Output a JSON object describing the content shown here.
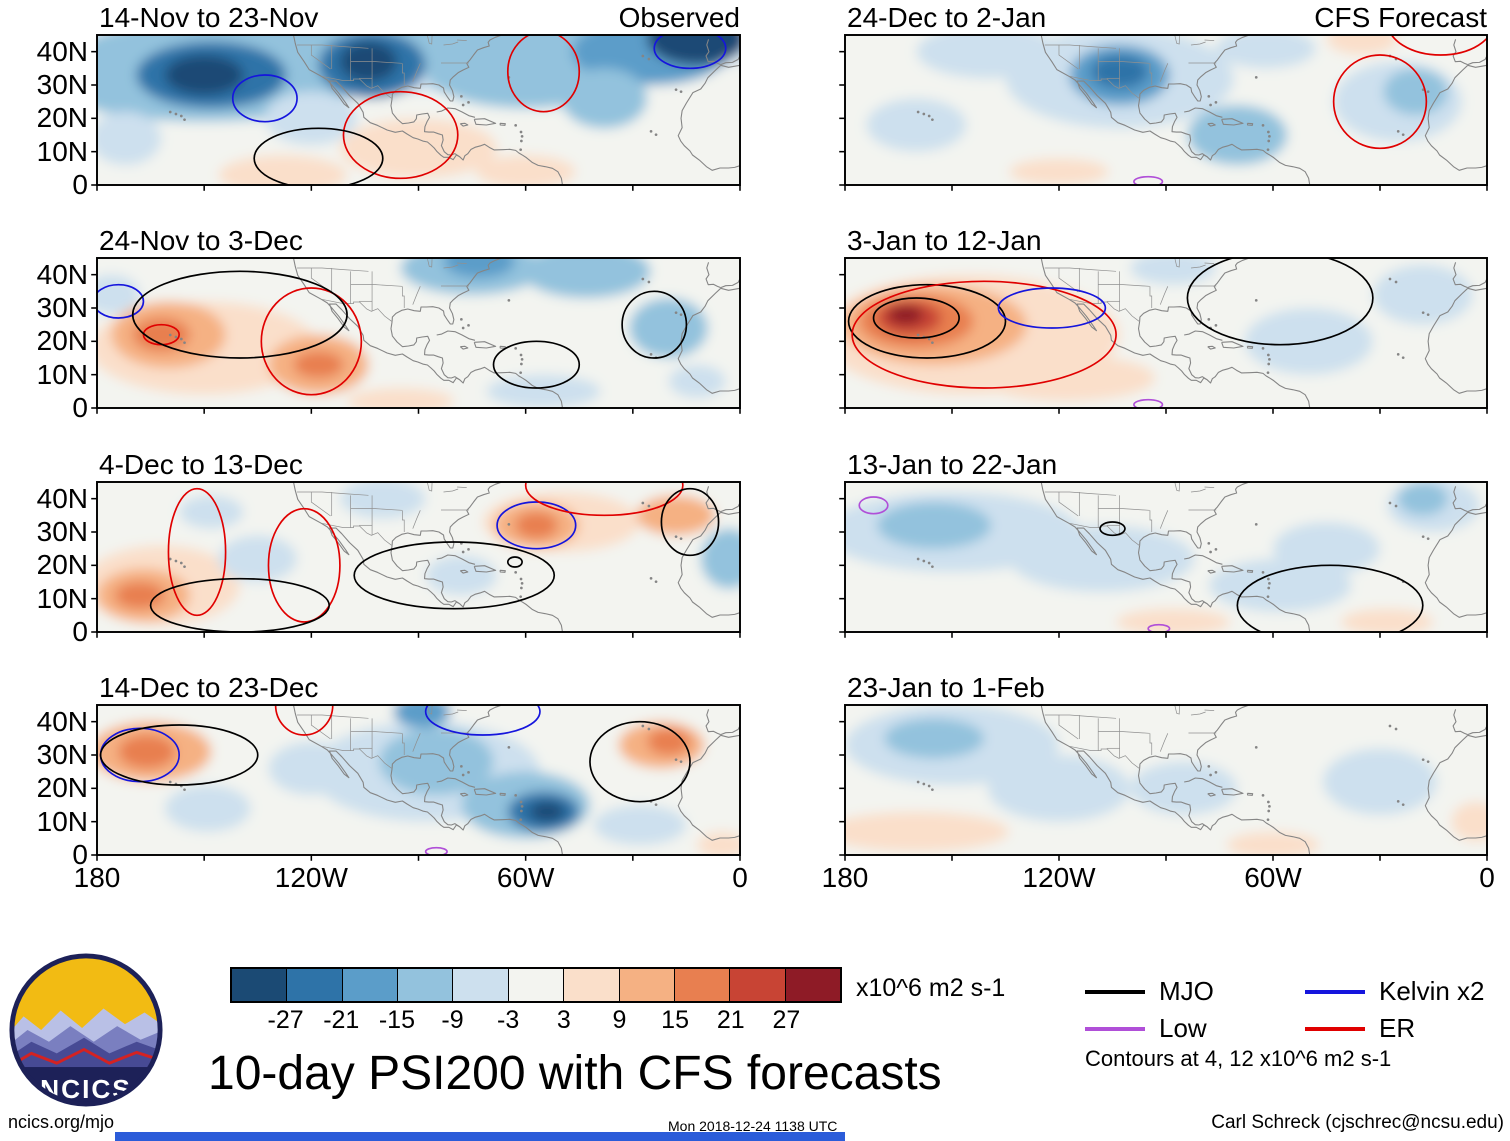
{
  "title": {
    "text": "10-day PSI200 with CFS forecasts"
  },
  "logo": {
    "text": "NCICS"
  },
  "footer": {
    "left": "ncics.org/mjo",
    "center": "Mon 2018-12-24 1138 UTC",
    "right": "Carl Schreck (cjschrec@ncsu.edu)"
  },
  "chart_data": {
    "type": "heatmap",
    "description": "Grid of 8 filled-contour longitude-latitude maps of PSI200 anomalies: left column observed 10-day periods, right column CFS forecast periods",
    "columns": [
      "Observed",
      "CFS Forecast"
    ],
    "lon_range": [
      -180,
      0
    ],
    "lat_range": [
      0,
      45
    ],
    "x_tick_labels": [
      "180",
      "120W",
      "60W",
      "0"
    ],
    "x_tick_lons": [
      -180,
      -120,
      -60,
      0
    ],
    "x_tick_minor": [
      -180,
      -150,
      -120,
      -90,
      -60,
      -30,
      0
    ],
    "y_tick_labels": [
      "40N",
      "30N",
      "20N",
      "10N",
      "0"
    ],
    "y_tick_lats": [
      40,
      30,
      20,
      10,
      0
    ],
    "colorbar": {
      "tick_labels": [
        "-27",
        "-21",
        "-15",
        "-9",
        "-3",
        "3",
        "9",
        "15",
        "21",
        "27"
      ],
      "colors": [
        "#1b4a74",
        "#2e73a8",
        "#5b9dc9",
        "#93c2dd",
        "#cde0ee",
        "#f3f4f0",
        "#fadfca",
        "#f5b183",
        "#e87f50",
        "#c84434",
        "#8e1b26"
      ],
      "units": "x10^6 m2 s-1"
    },
    "contour_colors": {
      "black": "#000000",
      "red": "#e00000",
      "blue": "#1515dd",
      "purple": "#b04fd8"
    },
    "legend": {
      "items": [
        {
          "label": "MJO",
          "color": "#000000"
        },
        {
          "label": "Low",
          "color": "#b04fd8"
        },
        {
          "label": "Kelvin x2",
          "color": "#1515dd"
        },
        {
          "label": "ER",
          "color": "#e00000"
        }
      ],
      "note": "Contours at 4, 12 x10^6 m2 s-1"
    },
    "panels": [
      {
        "title": "14-Nov to 23-Nov",
        "header": "Observed",
        "column": 0,
        "row": 0,
        "fills": [
          [
            -90,
            41,
            95,
            13,
            -1
          ],
          [
            -90,
            43,
            92,
            9,
            -2
          ],
          [
            -150,
            33,
            46,
            14,
            -2
          ],
          [
            -60,
            34,
            28,
            11,
            -2
          ],
          [
            -148,
            33,
            21,
            10,
            -4
          ],
          [
            -150,
            33,
            11,
            6,
            -5
          ],
          [
            -103,
            36,
            15,
            10,
            -4
          ],
          [
            -104,
            37,
            8,
            6,
            -5
          ],
          [
            -25,
            40,
            22,
            10,
            -3
          ],
          [
            -12,
            44,
            14,
            8,
            -5
          ],
          [
            -38,
            26,
            12,
            9,
            -2
          ],
          [
            -120,
            20,
            13,
            8,
            -1
          ],
          [
            -172,
            14,
            10,
            8,
            -1
          ],
          [
            -90,
            11,
            22,
            9,
            1
          ],
          [
            -128,
            3,
            18,
            6,
            1
          ],
          [
            -60,
            4,
            14,
            5,
            1
          ]
        ],
        "contours": [
          [
            "red",
            -95,
            15,
            16,
            13
          ],
          [
            "red",
            -55,
            34,
            10,
            12
          ],
          [
            "blue",
            -133,
            26,
            9,
            7
          ],
          [
            "blue",
            -14,
            41,
            10,
            6
          ],
          [
            "black",
            -118,
            8,
            18,
            9
          ]
        ]
      },
      {
        "title": "24-Dec to 2-Jan",
        "header": "CFS Forecast",
        "column": 1,
        "row": 0,
        "fills": [
          [
            -103,
            32,
            32,
            15,
            -1
          ],
          [
            -103,
            33,
            14,
            9,
            -3
          ],
          [
            -103,
            34,
            8,
            5,
            -4
          ],
          [
            -70,
            15,
            14,
            9,
            -2
          ],
          [
            -160,
            18,
            14,
            8,
            -1
          ],
          [
            -25,
            25,
            18,
            12,
            -1
          ],
          [
            -20,
            28,
            9,
            7,
            -2
          ],
          [
            -140,
            40,
            20,
            8,
            -1
          ],
          [
            -62,
            41,
            14,
            6,
            -1
          ],
          [
            -35,
            44,
            10,
            5,
            1
          ],
          [
            -120,
            4,
            14,
            4,
            1
          ]
        ],
        "contours": [
          [
            "red",
            -30,
            25,
            13,
            14
          ],
          [
            "red",
            -13,
            49,
            15,
            10
          ],
          [
            "purple",
            -95,
            1,
            4,
            1.5
          ]
        ]
      },
      {
        "title": "24-Nov to 3-Dec",
        "header": null,
        "column": 0,
        "row": 1,
        "fills": [
          [
            -150,
            18,
            32,
            14,
            1
          ],
          [
            -160,
            22,
            16,
            10,
            2
          ],
          [
            -162,
            22,
            8,
            5,
            3
          ],
          [
            -118,
            13,
            14,
            9,
            2
          ],
          [
            -118,
            13,
            7,
            4,
            3
          ],
          [
            -75,
            42,
            20,
            8,
            -2
          ],
          [
            -73,
            44,
            10,
            5,
            -3
          ],
          [
            -43,
            41,
            18,
            8,
            -2
          ],
          [
            -20,
            24,
            11,
            9,
            -2
          ],
          [
            -12,
            8,
            8,
            5,
            -1
          ],
          [
            -55,
            5,
            16,
            5,
            -1
          ],
          [
            -176,
            34,
            8,
            6,
            -1
          ],
          [
            -95,
            2,
            15,
            4,
            1
          ]
        ],
        "contours": [
          [
            "blue",
            -174,
            32,
            7,
            5
          ],
          [
            "red",
            -162,
            22,
            5,
            3
          ],
          [
            "red",
            -120,
            20,
            14,
            16
          ],
          [
            "black",
            -140,
            28,
            30,
            13
          ],
          [
            "black",
            -57,
            13,
            12,
            7
          ],
          [
            "black",
            -24,
            25,
            9,
            10
          ]
        ]
      },
      {
        "title": "3-Jan to 12-Jan",
        "header": null,
        "column": 1,
        "row": 1,
        "fills": [
          [
            -145,
            22,
            42,
            18,
            1
          ],
          [
            -155,
            25,
            26,
            12,
            2
          ],
          [
            -160,
            26,
            16,
            8,
            3
          ],
          [
            -162,
            27,
            9,
            5,
            4
          ],
          [
            -163,
            28,
            5,
            3,
            5
          ],
          [
            -118,
            9,
            25,
            7,
            1
          ],
          [
            -50,
            20,
            18,
            10,
            -1
          ],
          [
            -18,
            34,
            14,
            9,
            -1
          ],
          [
            -88,
            42,
            12,
            5,
            -1
          ]
        ],
        "contours": [
          [
            "black",
            -160,
            27,
            12,
            6
          ],
          [
            "black",
            -157,
            26,
            22,
            11
          ],
          [
            "red",
            -141,
            22,
            37,
            16
          ],
          [
            "blue",
            -122,
            30,
            15,
            6
          ],
          [
            "black",
            -58,
            33,
            26,
            14
          ],
          [
            "purple",
            -95,
            1,
            4,
            1.5
          ]
        ]
      },
      {
        "title": "4-Dec to 13-Dec",
        "header": null,
        "column": 0,
        "row": 2,
        "fills": [
          [
            -162,
            14,
            22,
            12,
            1
          ],
          [
            -167,
            11,
            13,
            8,
            2
          ],
          [
            -168,
            11,
            7,
            4,
            3
          ],
          [
            -135,
            22,
            11,
            7,
            -1
          ],
          [
            -148,
            36,
            9,
            5,
            -1
          ],
          [
            -50,
            33,
            22,
            9,
            1
          ],
          [
            -57,
            32,
            12,
            7,
            2
          ],
          [
            -57,
            32,
            6,
            4,
            3
          ],
          [
            -18,
            35,
            11,
            6,
            2
          ],
          [
            -3,
            22,
            8,
            9,
            -2
          ],
          [
            -78,
            17,
            10,
            6,
            -1
          ],
          [
            -100,
            40,
            12,
            6,
            -1
          ]
        ],
        "contours": [
          [
            "red",
            -152,
            24,
            8,
            19
          ],
          [
            "red",
            -122,
            20,
            10,
            17
          ],
          [
            "blue",
            -57,
            32,
            11,
            7
          ],
          [
            "red",
            -38,
            44,
            22,
            9
          ],
          [
            "black",
            -140,
            8,
            25,
            8
          ],
          [
            "black",
            -80,
            17,
            28,
            10
          ],
          [
            "black",
            -14,
            33,
            8,
            10
          ],
          [
            "black",
            -63,
            21,
            2,
            1.5
          ]
        ]
      },
      {
        "title": "13-Jan to 22-Jan",
        "header": null,
        "column": 1,
        "row": 2,
        "fills": [
          [
            -150,
            30,
            36,
            12,
            -1
          ],
          [
            -155,
            32,
            16,
            7,
            -2
          ],
          [
            -108,
            22,
            26,
            10,
            -1
          ],
          [
            -58,
            14,
            20,
            8,
            -1
          ],
          [
            -15,
            38,
            13,
            8,
            -1
          ],
          [
            -18,
            40,
            7,
            5,
            -2
          ],
          [
            -88,
            3,
            16,
            4,
            1
          ],
          [
            -28,
            3,
            13,
            4,
            1
          ],
          [
            -45,
            25,
            15,
            8,
            -1
          ]
        ],
        "contours": [
          [
            "purple",
            -172,
            38,
            4,
            2.5
          ],
          [
            "black",
            -105,
            31,
            3.5,
            2
          ],
          [
            "black",
            -44,
            8,
            26,
            12
          ],
          [
            "purple",
            -92,
            1,
            3,
            1.2
          ]
        ]
      },
      {
        "title": "14-Dec to 23-Dec",
        "header": null,
        "column": 0,
        "row": 3,
        "fills": [
          [
            -165,
            31,
            17,
            9,
            2
          ],
          [
            -166,
            31,
            8,
            5,
            3
          ],
          [
            -149,
            14,
            12,
            7,
            -1
          ],
          [
            -88,
            25,
            32,
            15,
            -1
          ],
          [
            -85,
            28,
            16,
            10,
            -2
          ],
          [
            -89,
            43,
            8,
            5,
            -3
          ],
          [
            -60,
            15,
            18,
            10,
            -2
          ],
          [
            -55,
            13,
            10,
            6,
            -4
          ],
          [
            -54,
            13,
            5,
            3,
            -5
          ],
          [
            -28,
            9,
            13,
            6,
            -1
          ],
          [
            -22,
            33,
            12,
            7,
            2
          ],
          [
            -20,
            34,
            6,
            4,
            3
          ],
          [
            -5,
            3,
            7,
            4,
            1
          ],
          [
            -120,
            26,
            12,
            8,
            -1
          ]
        ],
        "contours": [
          [
            "blue",
            -168,
            30,
            11,
            8
          ],
          [
            "black",
            -157,
            30,
            22,
            9
          ],
          [
            "red",
            -122,
            45,
            8,
            9
          ],
          [
            "blue",
            -72,
            43,
            16,
            7
          ],
          [
            "black",
            -28,
            28,
            14,
            12
          ],
          [
            "purple",
            -85,
            1,
            3,
            1.2
          ]
        ]
      },
      {
        "title": "23-Jan to 1-Feb",
        "header": null,
        "column": 1,
        "row": 3,
        "fills": [
          [
            -150,
            33,
            30,
            12,
            -1
          ],
          [
            -155,
            35,
            14,
            6,
            -2
          ],
          [
            -120,
            20,
            20,
            10,
            -1
          ],
          [
            -85,
            20,
            15,
            8,
            -1
          ],
          [
            -30,
            22,
            16,
            10,
            -1
          ],
          [
            -160,
            7,
            26,
            6,
            1
          ],
          [
            -60,
            3,
            13,
            4,
            1
          ],
          [
            -3,
            10,
            7,
            6,
            1
          ]
        ],
        "contours": []
      }
    ]
  }
}
